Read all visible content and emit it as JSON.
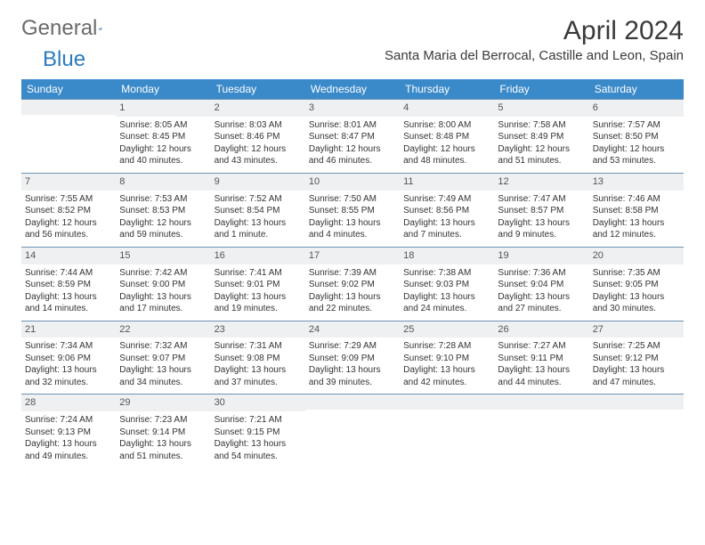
{
  "logo": {
    "word1": "General",
    "word2": "Blue"
  },
  "title": "April 2024",
  "location": "Santa Maria del Berrocal, Castille and Leon, Spain",
  "styling": {
    "page_bg": "#ffffff",
    "header_bg": "#3a89c9",
    "header_text_color": "#ffffff",
    "daynum_bg": "#eef0f2",
    "daynum_text": "#545454",
    "cell_text": "#333333",
    "row_border": "#6f93b0",
    "logo_gray": "#6a6a6a",
    "logo_blue": "#2b7bbf",
    "title_fontsize_pt": 22,
    "location_fontsize_pt": 11,
    "header_fontsize_pt": 9,
    "cell_fontsize_pt": 7.5,
    "columns": 7,
    "rows": 5
  },
  "weekdays": [
    "Sunday",
    "Monday",
    "Tuesday",
    "Wednesday",
    "Thursday",
    "Friday",
    "Saturday"
  ],
  "weeks": [
    [
      {
        "n": "",
        "sr": "",
        "ss": "",
        "dl": ""
      },
      {
        "n": "1",
        "sr": "Sunrise: 8:05 AM",
        "ss": "Sunset: 8:45 PM",
        "dl": "Daylight: 12 hours and 40 minutes."
      },
      {
        "n": "2",
        "sr": "Sunrise: 8:03 AM",
        "ss": "Sunset: 8:46 PM",
        "dl": "Daylight: 12 hours and 43 minutes."
      },
      {
        "n": "3",
        "sr": "Sunrise: 8:01 AM",
        "ss": "Sunset: 8:47 PM",
        "dl": "Daylight: 12 hours and 46 minutes."
      },
      {
        "n": "4",
        "sr": "Sunrise: 8:00 AM",
        "ss": "Sunset: 8:48 PM",
        "dl": "Daylight: 12 hours and 48 minutes."
      },
      {
        "n": "5",
        "sr": "Sunrise: 7:58 AM",
        "ss": "Sunset: 8:49 PM",
        "dl": "Daylight: 12 hours and 51 minutes."
      },
      {
        "n": "6",
        "sr": "Sunrise: 7:57 AM",
        "ss": "Sunset: 8:50 PM",
        "dl": "Daylight: 12 hours and 53 minutes."
      }
    ],
    [
      {
        "n": "7",
        "sr": "Sunrise: 7:55 AM",
        "ss": "Sunset: 8:52 PM",
        "dl": "Daylight: 12 hours and 56 minutes."
      },
      {
        "n": "8",
        "sr": "Sunrise: 7:53 AM",
        "ss": "Sunset: 8:53 PM",
        "dl": "Daylight: 12 hours and 59 minutes."
      },
      {
        "n": "9",
        "sr": "Sunrise: 7:52 AM",
        "ss": "Sunset: 8:54 PM",
        "dl": "Daylight: 13 hours and 1 minute."
      },
      {
        "n": "10",
        "sr": "Sunrise: 7:50 AM",
        "ss": "Sunset: 8:55 PM",
        "dl": "Daylight: 13 hours and 4 minutes."
      },
      {
        "n": "11",
        "sr": "Sunrise: 7:49 AM",
        "ss": "Sunset: 8:56 PM",
        "dl": "Daylight: 13 hours and 7 minutes."
      },
      {
        "n": "12",
        "sr": "Sunrise: 7:47 AM",
        "ss": "Sunset: 8:57 PM",
        "dl": "Daylight: 13 hours and 9 minutes."
      },
      {
        "n": "13",
        "sr": "Sunrise: 7:46 AM",
        "ss": "Sunset: 8:58 PM",
        "dl": "Daylight: 13 hours and 12 minutes."
      }
    ],
    [
      {
        "n": "14",
        "sr": "Sunrise: 7:44 AM",
        "ss": "Sunset: 8:59 PM",
        "dl": "Daylight: 13 hours and 14 minutes."
      },
      {
        "n": "15",
        "sr": "Sunrise: 7:42 AM",
        "ss": "Sunset: 9:00 PM",
        "dl": "Daylight: 13 hours and 17 minutes."
      },
      {
        "n": "16",
        "sr": "Sunrise: 7:41 AM",
        "ss": "Sunset: 9:01 PM",
        "dl": "Daylight: 13 hours and 19 minutes."
      },
      {
        "n": "17",
        "sr": "Sunrise: 7:39 AM",
        "ss": "Sunset: 9:02 PM",
        "dl": "Daylight: 13 hours and 22 minutes."
      },
      {
        "n": "18",
        "sr": "Sunrise: 7:38 AM",
        "ss": "Sunset: 9:03 PM",
        "dl": "Daylight: 13 hours and 24 minutes."
      },
      {
        "n": "19",
        "sr": "Sunrise: 7:36 AM",
        "ss": "Sunset: 9:04 PM",
        "dl": "Daylight: 13 hours and 27 minutes."
      },
      {
        "n": "20",
        "sr": "Sunrise: 7:35 AM",
        "ss": "Sunset: 9:05 PM",
        "dl": "Daylight: 13 hours and 30 minutes."
      }
    ],
    [
      {
        "n": "21",
        "sr": "Sunrise: 7:34 AM",
        "ss": "Sunset: 9:06 PM",
        "dl": "Daylight: 13 hours and 32 minutes."
      },
      {
        "n": "22",
        "sr": "Sunrise: 7:32 AM",
        "ss": "Sunset: 9:07 PM",
        "dl": "Daylight: 13 hours and 34 minutes."
      },
      {
        "n": "23",
        "sr": "Sunrise: 7:31 AM",
        "ss": "Sunset: 9:08 PM",
        "dl": "Daylight: 13 hours and 37 minutes."
      },
      {
        "n": "24",
        "sr": "Sunrise: 7:29 AM",
        "ss": "Sunset: 9:09 PM",
        "dl": "Daylight: 13 hours and 39 minutes."
      },
      {
        "n": "25",
        "sr": "Sunrise: 7:28 AM",
        "ss": "Sunset: 9:10 PM",
        "dl": "Daylight: 13 hours and 42 minutes."
      },
      {
        "n": "26",
        "sr": "Sunrise: 7:27 AM",
        "ss": "Sunset: 9:11 PM",
        "dl": "Daylight: 13 hours and 44 minutes."
      },
      {
        "n": "27",
        "sr": "Sunrise: 7:25 AM",
        "ss": "Sunset: 9:12 PM",
        "dl": "Daylight: 13 hours and 47 minutes."
      }
    ],
    [
      {
        "n": "28",
        "sr": "Sunrise: 7:24 AM",
        "ss": "Sunset: 9:13 PM",
        "dl": "Daylight: 13 hours and 49 minutes."
      },
      {
        "n": "29",
        "sr": "Sunrise: 7:23 AM",
        "ss": "Sunset: 9:14 PM",
        "dl": "Daylight: 13 hours and 51 minutes."
      },
      {
        "n": "30",
        "sr": "Sunrise: 7:21 AM",
        "ss": "Sunset: 9:15 PM",
        "dl": "Daylight: 13 hours and 54 minutes."
      },
      {
        "n": "",
        "sr": "",
        "ss": "",
        "dl": ""
      },
      {
        "n": "",
        "sr": "",
        "ss": "",
        "dl": ""
      },
      {
        "n": "",
        "sr": "",
        "ss": "",
        "dl": ""
      },
      {
        "n": "",
        "sr": "",
        "ss": "",
        "dl": ""
      }
    ]
  ]
}
